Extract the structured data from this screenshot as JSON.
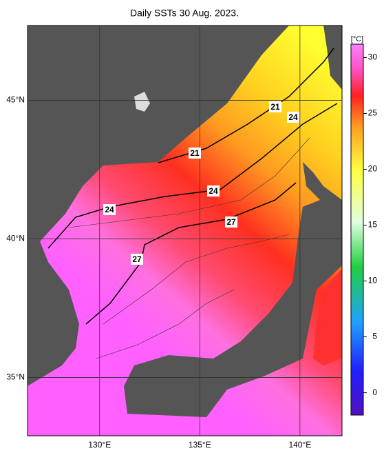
{
  "map": {
    "title": "Daily SSTs 30 Aug. 2023.",
    "xlim": [
      126.4,
      142.1
    ],
    "ylim": [
      32.9,
      47.7
    ],
    "xticks": [
      {
        "value": 130,
        "label": "130°E"
      },
      {
        "value": 135,
        "label": "135°E"
      },
      {
        "value": 140,
        "label": "140°E"
      }
    ],
    "yticks": [
      {
        "value": 35,
        "label": "35°N"
      },
      {
        "value": 40,
        "label": "40°N"
      },
      {
        "value": 45,
        "label": "45°N"
      }
    ],
    "colorbar": {
      "unit": "[°C]",
      "range": [
        -2,
        31.2
      ],
      "ticks": [
        0,
        5,
        10,
        15,
        20,
        25,
        30
      ]
    },
    "contour_labels": [
      21,
      21,
      24,
      24,
      24,
      27,
      27
    ]
  }
}
